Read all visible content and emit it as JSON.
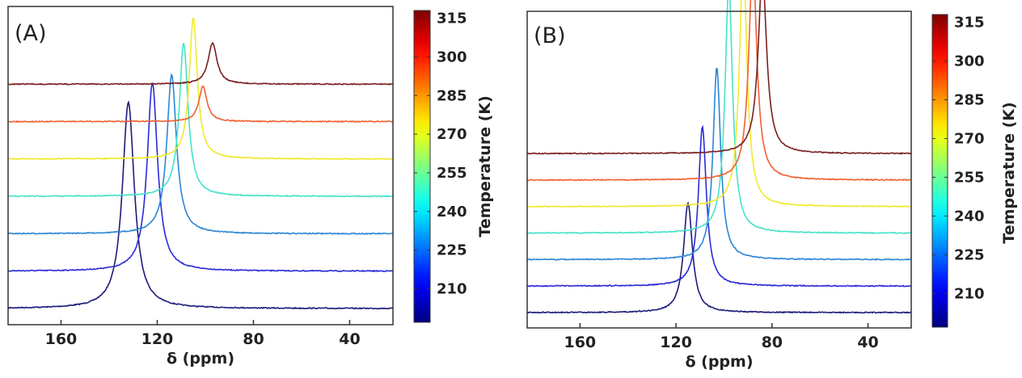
{
  "chart_data": [
    {
      "type": "line",
      "panel_label": "(A)",
      "xlabel": "δ (ppm)",
      "x_ticks": [
        "160",
        "120",
        "80",
        "40"
      ],
      "x_tick_values": [
        160,
        120,
        80,
        40
      ],
      "xlim": [
        182,
        22
      ],
      "x_reversed": true,
      "ylabel": "",
      "grid": false,
      "colorbar": {
        "title": "Temperature (K)",
        "tick_labels": [
          "315",
          "300",
          "285",
          "270",
          "255",
          "240",
          "225",
          "210"
        ],
        "tick_values": [
          315,
          300,
          285,
          270,
          255,
          240,
          225,
          210
        ],
        "range": [
          197,
          318
        ],
        "colormap": "jet"
      },
      "series": [
        {
          "temperature": 210,
          "color": "#1c1c7a",
          "peak_ppm": 132,
          "peak_height": 3.5,
          "width_ppm": 3.0
        },
        {
          "temperature": 225,
          "color": "#2a2ad8",
          "peak_ppm": 122,
          "peak_height": 3.2,
          "width_ppm": 2.6
        },
        {
          "temperature": 240,
          "color": "#2c86d6",
          "peak_ppm": 114,
          "peak_height": 2.7,
          "width_ppm": 2.4
        },
        {
          "temperature": 255,
          "color": "#46e2c8",
          "peak_ppm": 109,
          "peak_height": 2.6,
          "width_ppm": 2.2
        },
        {
          "temperature": 285,
          "color": "#f0ea2c",
          "peak_ppm": 105,
          "peak_height": 2.4,
          "width_ppm": 2.0
        },
        {
          "temperature": 300,
          "color": "#f06032",
          "peak_ppm": 101,
          "peak_height": 0.6,
          "width_ppm": 2.0
        },
        {
          "temperature": 315,
          "color": "#7a1e20",
          "peak_ppm": 97,
          "peak_height": 0.7,
          "width_ppm": 2.2
        }
      ]
    },
    {
      "type": "line",
      "panel_label": "(B)",
      "xlabel": "δ (ppm)",
      "x_ticks": [
        "160",
        "120",
        "80",
        "40"
      ],
      "x_tick_values": [
        160,
        120,
        80,
        40
      ],
      "xlim": [
        182,
        22
      ],
      "x_reversed": true,
      "ylabel": "",
      "grid": false,
      "colorbar": {
        "title": "Temperature (K)",
        "tick_labels": [
          "315",
          "300",
          "285",
          "270",
          "255",
          "240",
          "225",
          "210"
        ],
        "tick_values": [
          315,
          300,
          285,
          270,
          255,
          240,
          225,
          210
        ],
        "range": [
          197,
          318
        ],
        "colormap": "jet"
      },
      "series": [
        {
          "temperature": 210,
          "color": "#1c1c7a",
          "peak_ppm": 115,
          "peak_height": 2.0,
          "width_ppm": 2.2
        },
        {
          "temperature": 225,
          "color": "#2a2ad8",
          "peak_ppm": 109,
          "peak_height": 2.9,
          "width_ppm": 2.0
        },
        {
          "temperature": 240,
          "color": "#2c86d6",
          "peak_ppm": 103,
          "peak_height": 3.5,
          "width_ppm": 1.9
        },
        {
          "temperature": 255,
          "color": "#46e2c8",
          "peak_ppm": 98,
          "peak_height": 4.5,
          "width_ppm": 1.9
        },
        {
          "temperature": 285,
          "color": "#f0ea2c",
          "peak_ppm": 92,
          "peak_height": 4.5,
          "width_ppm": 1.9
        },
        {
          "temperature": 300,
          "color": "#f06032",
          "peak_ppm": 88,
          "peak_height": 4.0,
          "width_ppm": 2.0
        },
        {
          "temperature": 315,
          "color": "#7a1e20",
          "peak_ppm": 84,
          "peak_height": 3.3,
          "width_ppm": 2.1
        }
      ]
    }
  ]
}
